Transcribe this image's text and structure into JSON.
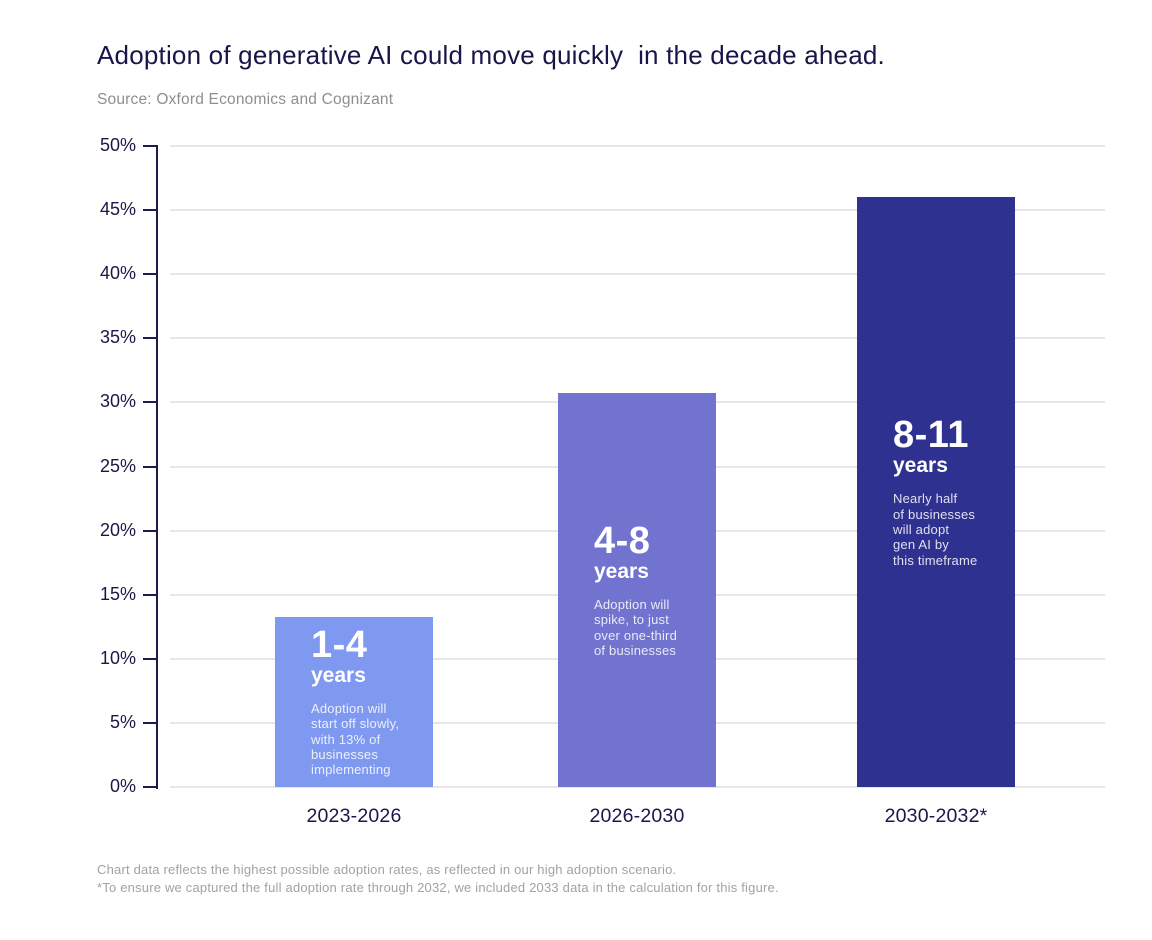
{
  "header": {
    "title": "Adoption of generative AI could move quickly  in the decade ahead.",
    "source": "Source: Oxford Economics and Cognizant"
  },
  "chart_data": {
    "type": "bar",
    "title": "Adoption of generative AI could move quickly in the decade ahead.",
    "categories": [
      "2023-2026",
      "2026-2030",
      "2030-2032*"
    ],
    "values": [
      13.3,
      30.7,
      46
    ],
    "xlabel": "",
    "ylabel": "",
    "ylim": [
      0,
      50
    ],
    "ytick_step": 5,
    "ytick_suffix": "%",
    "grid": true,
    "legend": "none",
    "bar_colors": [
      "#7F99F0",
      "#7173CF",
      "#2F3190"
    ],
    "bar_annotations": [
      {
        "range": "1-4",
        "unit": "years",
        "description": "Adoption will\nstart off slowly,\nwith 13% of\nbusinesses\nimplementing"
      },
      {
        "range": "4-8",
        "unit": "years",
        "description": "Adoption will\nspike, to just\nover one-third\nof businesses"
      },
      {
        "range": "8-11",
        "unit": "years",
        "description": "Nearly half\nof businesses\nwill adopt\ngen AI by\nthis timeframe"
      }
    ]
  },
  "footnotes": [
    "Chart data reflects the highest possible adoption rates, as reflected in our high adoption scenario.",
    "*To ensure we captured the full adoption rate through 2032, we included 2033 data in the calculation for this figure."
  ],
  "colors": {
    "title_text": "#16164A",
    "axis": "#1B1B4F",
    "gridline": "#E7E7E7",
    "source_text": "#8E8E8E",
    "footnote_text": "#A2A2A2",
    "bar_text": "#FFFFFF"
  }
}
